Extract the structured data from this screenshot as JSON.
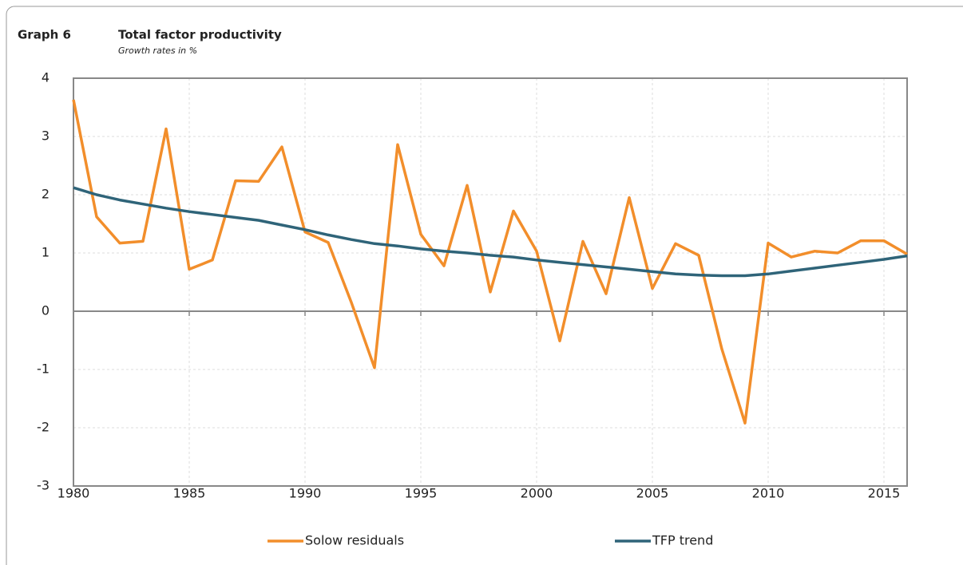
{
  "chart_data": {
    "type": "line",
    "graph_label": "Graph 6",
    "title": "Total factor productivity",
    "subtitle": "Growth rates in %",
    "x": [
      1980,
      1981,
      1982,
      1983,
      1984,
      1985,
      1986,
      1987,
      1988,
      1989,
      1990,
      1991,
      1992,
      1993,
      1994,
      1995,
      1996,
      1997,
      1998,
      1999,
      2000,
      2001,
      2002,
      2003,
      2004,
      2005,
      2006,
      2007,
      2008,
      2009,
      2010,
      2011,
      2012,
      2013,
      2014,
      2015,
      2016
    ],
    "series": [
      {
        "name": "Solow residuals",
        "color": "#f28e2b",
        "values": [
          3.63,
          1.62,
          1.17,
          1.2,
          3.13,
          0.72,
          0.88,
          2.24,
          2.23,
          2.82,
          1.36,
          1.18,
          0.15,
          -0.97,
          2.86,
          1.32,
          0.78,
          2.16,
          0.33,
          1.72,
          1.03,
          -0.51,
          1.2,
          0.3,
          1.95,
          0.39,
          1.16,
          0.96,
          -0.65,
          -1.92,
          1.17,
          0.93,
          1.03,
          1.0,
          1.21,
          1.21,
          0.98
        ]
      },
      {
        "name": "TFP trend",
        "color": "#2f6479",
        "values": [
          2.12,
          2.0,
          1.91,
          1.84,
          1.77,
          1.71,
          1.66,
          1.61,
          1.56,
          1.48,
          1.4,
          1.31,
          1.23,
          1.16,
          1.12,
          1.07,
          1.03,
          1.0,
          0.96,
          0.93,
          0.88,
          0.84,
          0.8,
          0.76,
          0.72,
          0.68,
          0.64,
          0.62,
          0.61,
          0.61,
          0.64,
          0.69,
          0.74,
          0.79,
          0.84,
          0.89,
          0.95
        ]
      }
    ],
    "xlim": [
      1980,
      2016
    ],
    "xticks": [
      1980,
      1985,
      1990,
      1995,
      2000,
      2005,
      2010,
      2015
    ],
    "ylim": [
      -3,
      4
    ],
    "yticks": [
      -3,
      -2,
      -1,
      0,
      1,
      2,
      3,
      4
    ],
    "grid": true
  }
}
